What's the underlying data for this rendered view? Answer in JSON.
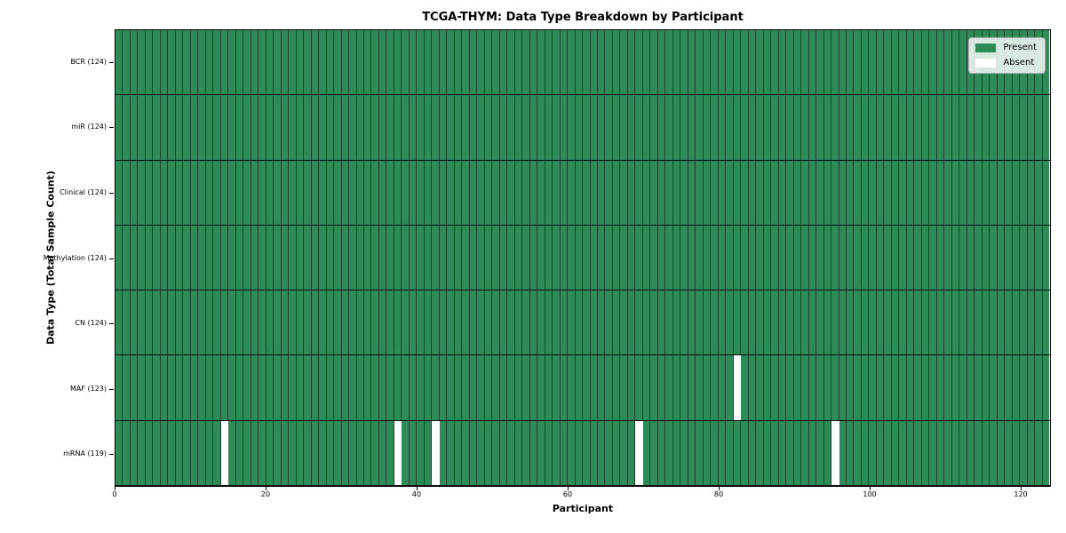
{
  "chart_data": {
    "type": "heatmap",
    "title": "TCGA-THYM: Data Type Breakdown by Participant",
    "xlabel": "Participant",
    "ylabel": "Data Type (Total Sample Count)",
    "n_participants": 124,
    "x_range": [
      0,
      124
    ],
    "x_ticks": [
      0,
      20,
      40,
      60,
      80,
      100,
      120
    ],
    "grid": "cell-borders",
    "colors": {
      "present": "#2e8b57",
      "absent": "#ffffff",
      "cell_edge": "rgba(0,0,0,0.5)",
      "row_separator": "#101010"
    },
    "legend": {
      "position": "upper right",
      "entries": [
        {
          "label": "Present",
          "color": "#2e8b57"
        },
        {
          "label": "Absent",
          "color": "#ffffff"
        }
      ]
    },
    "rows": [
      {
        "label": "BCR (124)",
        "data_type": "BCR",
        "total_samples": 124,
        "absent_participants": []
      },
      {
        "label": "miR (124)",
        "data_type": "miR",
        "total_samples": 124,
        "absent_participants": []
      },
      {
        "label": "Clinical (124)",
        "data_type": "Clinical",
        "total_samples": 124,
        "absent_participants": []
      },
      {
        "label": "Methylation (124)",
        "data_type": "Methylation",
        "total_samples": 124,
        "absent_participants": []
      },
      {
        "label": "CN (124)",
        "data_type": "CN",
        "total_samples": 124,
        "absent_participants": []
      },
      {
        "label": "MAF (123)",
        "data_type": "MAF",
        "total_samples": 123,
        "absent_participants": [
          82
        ]
      },
      {
        "label": "mRNA (119)",
        "data_type": "mRNA",
        "total_samples": 119,
        "absent_participants": [
          14,
          37,
          42,
          69,
          95
        ]
      }
    ]
  }
}
